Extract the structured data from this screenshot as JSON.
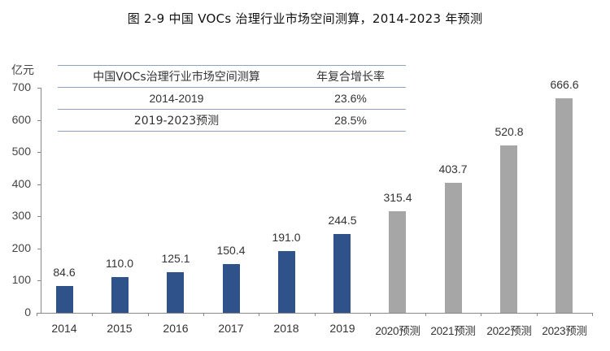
{
  "title": "图 2-9 中国 VOCs 治理行业市场空间测算，2014-2023 年预测",
  "unit_label": "亿元",
  "colors": {
    "actual": "#2e5289",
    "forecast": "#a6a6a6",
    "table_rule": "#8ea3bf"
  },
  "table": {
    "headers": [
      "中国VOCs治理行业市场空间测算",
      "年复合增长率"
    ],
    "rows": [
      {
        "period": "2014-2019",
        "cagr": "23.6%"
      },
      {
        "period": "2019-2023预测",
        "cagr": "28.5%"
      }
    ]
  },
  "chart_data": {
    "type": "bar",
    "title": "图 2-9 中国 VOCs 治理行业市场空间测算，2014-2023 年预测",
    "xlabel": "",
    "ylabel": "亿元",
    "ylim": [
      0,
      700
    ],
    "yticks": [
      "0",
      "100",
      "200",
      "300",
      "400",
      "500",
      "600",
      "700"
    ],
    "grid": false,
    "categories": [
      "2014",
      "2015",
      "2016",
      "2017",
      "2018",
      "2019",
      "2020预测",
      "2021预测",
      "2022预测",
      "2023预测"
    ],
    "values": [
      84.6,
      110.0,
      125.1,
      150.4,
      191.0,
      244.5,
      315.4,
      403.7,
      520.8,
      666.6
    ],
    "value_labels": [
      "84.6",
      "110.0",
      "125.1",
      "150.4",
      "191.0",
      "244.5",
      "315.4",
      "403.7",
      "520.8",
      "666.6"
    ],
    "series_type": [
      "actual",
      "actual",
      "actual",
      "actual",
      "actual",
      "actual",
      "forecast",
      "forecast",
      "forecast",
      "forecast"
    ],
    "legend": null
  }
}
